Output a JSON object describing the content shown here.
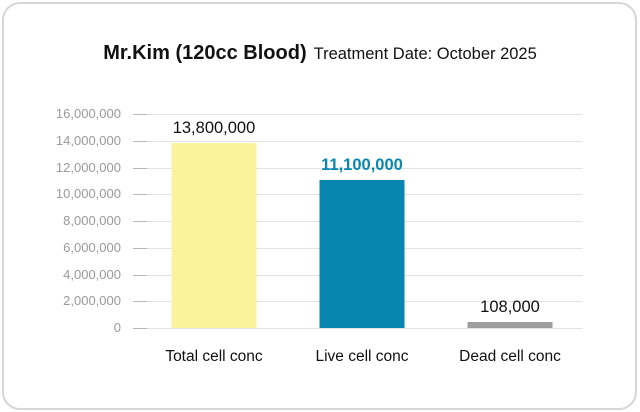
{
  "header": {
    "title": "Mr.Kim (120cc Blood)",
    "subtitle": "Treatment Date: October 2025"
  },
  "chart_data": {
    "type": "bar",
    "title": "Mr.Kim (120cc Blood)",
    "subtitle": "Treatment Date: October 2025",
    "categories": [
      "Total cell conc",
      "Live cell conc",
      "Dead cell conc"
    ],
    "values": [
      13800000,
      11100000,
      108000
    ],
    "value_labels": [
      "13,800,000",
      "11,100,000",
      "108,000"
    ],
    "bars": [
      {
        "category": "Total cell conc",
        "value": 13800000,
        "value_label": "13,800,000",
        "color": "#FBF29B",
        "value_label_color": "#111111",
        "value_label_bold": false
      },
      {
        "category": "Live cell conc",
        "value": 11100000,
        "value_label": "11,100,000",
        "color": "#0886B0",
        "value_label_color": "#0886B0",
        "value_label_bold": true
      },
      {
        "category": "Dead cell conc",
        "value": 108000,
        "value_label": "108,000",
        "color": "#9E9E9E",
        "value_label_color": "#111111",
        "value_label_bold": false
      }
    ],
    "ylim": [
      0,
      16000000
    ],
    "ytick_interval": 2000000,
    "ytick_labels": [
      "16,000,000",
      "14,000,000",
      "12,000,000",
      "10,000,000",
      "8,000,000",
      "6,000,000",
      "4,000,000",
      "2,000,000",
      "0"
    ],
    "grid": true,
    "legend": false
  },
  "theme": {
    "card_border": "#D6D6D6",
    "background": "#FFFFFF",
    "gridline": "#E3E3E3",
    "axis_tick": "#B8B8B8",
    "axis_label": "#9A9A9A",
    "text": "#111111",
    "accent": "#0886B0"
  }
}
